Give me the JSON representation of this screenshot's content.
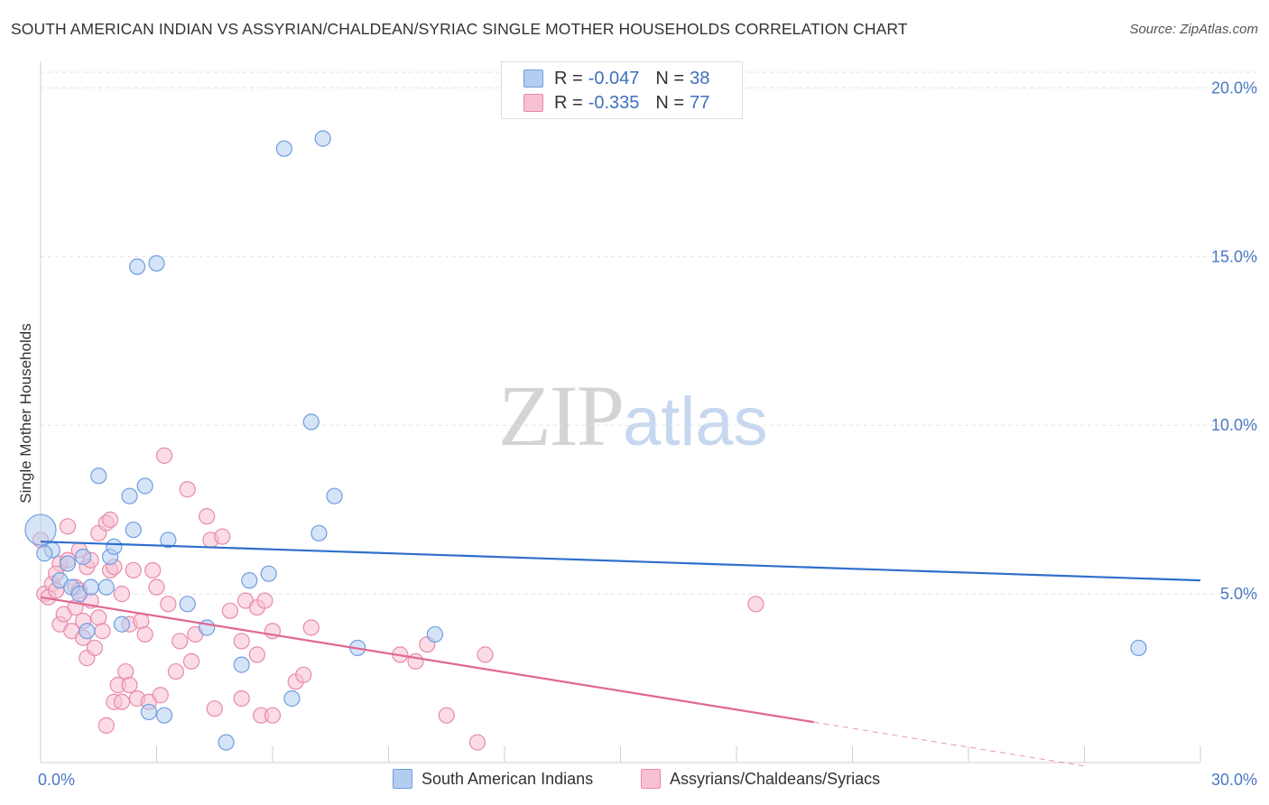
{
  "header": {
    "title": "SOUTH AMERICAN INDIAN VS ASSYRIAN/CHALDEAN/SYRIAC SINGLE MOTHER HOUSEHOLDS CORRELATION CHART",
    "source": "Source: ZipAtlas.com"
  },
  "watermark": {
    "zip": "ZIP",
    "atlas": "atlas"
  },
  "legend": {
    "blue": {
      "r_label": "R =",
      "r_value": "-0.047",
      "n_label": "N =",
      "n_value": "38"
    },
    "pink": {
      "r_label": "R =",
      "r_value": "-0.335",
      "n_label": "N =",
      "n_value": "77"
    }
  },
  "colors": {
    "blue_fill": "#b3cdf0",
    "blue_stroke": "#6f9ddf",
    "blue_line": "#2f6fcc",
    "pink_fill": "#f7c0d2",
    "pink_stroke": "#e88aaa",
    "pink_line": "#e0688f",
    "tick_text": "#4a78c2"
  },
  "chart_data": {
    "type": "scatter",
    "ylabel": "Single Mother Households",
    "xlim": [
      0,
      30
    ],
    "ylim": [
      0,
      20.6
    ],
    "x_tick_labels": [
      "0.0%",
      "30.0%"
    ],
    "y_ticks": [
      5,
      10,
      15,
      20
    ],
    "y_tick_labels": [
      "5.0%",
      "10.0%",
      "15.0%",
      "20.0%"
    ],
    "series": [
      {
        "name": "South American Indians",
        "color": "blue",
        "trend": {
          "x": [
            0,
            30
          ],
          "y": [
            6.55,
            5.4
          ]
        },
        "points": [
          [
            0.0,
            6.9
          ],
          [
            0.3,
            6.3
          ],
          [
            0.5,
            5.4
          ],
          [
            0.7,
            5.9
          ],
          [
            0.8,
            5.2
          ],
          [
            1.0,
            5.0
          ],
          [
            1.1,
            6.1
          ],
          [
            1.2,
            3.9
          ],
          [
            1.3,
            5.2
          ],
          [
            1.5,
            8.5
          ],
          [
            1.7,
            5.2
          ],
          [
            1.8,
            6.1
          ],
          [
            1.9,
            6.4
          ],
          [
            2.1,
            4.1
          ],
          [
            2.3,
            7.9
          ],
          [
            2.4,
            6.9
          ],
          [
            2.5,
            14.7
          ],
          [
            2.7,
            8.2
          ],
          [
            2.8,
            1.5
          ],
          [
            3.0,
            14.8
          ],
          [
            3.2,
            1.4
          ],
          [
            3.3,
            6.6
          ],
          [
            3.8,
            4.7
          ],
          [
            4.3,
            4.0
          ],
          [
            4.8,
            0.6
          ],
          [
            5.2,
            2.9
          ],
          [
            5.4,
            5.4
          ],
          [
            5.9,
            5.6
          ],
          [
            6.3,
            18.2
          ],
          [
            6.5,
            1.9
          ],
          [
            7.0,
            10.1
          ],
          [
            7.2,
            6.8
          ],
          [
            7.3,
            18.5
          ],
          [
            7.6,
            7.9
          ],
          [
            8.2,
            3.4
          ],
          [
            10.2,
            3.8
          ],
          [
            28.4,
            3.4
          ],
          [
            0.1,
            6.2
          ]
        ]
      },
      {
        "name": "Assyrians/Chaldeans/Syriacs",
        "color": "pink",
        "trend": {
          "x": [
            0,
            20
          ],
          "y": [
            4.9,
            1.2
          ]
        },
        "trend_dashed": {
          "x": [
            20,
            27
          ],
          "y": [
            1.2,
            -0.1
          ]
        },
        "points": [
          [
            0.0,
            6.6
          ],
          [
            0.1,
            5.0
          ],
          [
            0.2,
            4.9
          ],
          [
            0.3,
            5.3
          ],
          [
            0.4,
            5.1
          ],
          [
            0.5,
            5.9
          ],
          [
            0.5,
            4.1
          ],
          [
            0.6,
            4.4
          ],
          [
            0.7,
            6.0
          ],
          [
            0.7,
            7.0
          ],
          [
            0.8,
            3.9
          ],
          [
            0.9,
            5.2
          ],
          [
            1.0,
            6.3
          ],
          [
            1.0,
            5.1
          ],
          [
            1.1,
            4.2
          ],
          [
            1.1,
            3.7
          ],
          [
            1.2,
            5.8
          ],
          [
            1.2,
            3.1
          ],
          [
            1.3,
            6.0
          ],
          [
            1.3,
            4.8
          ],
          [
            1.4,
            3.4
          ],
          [
            1.5,
            6.8
          ],
          [
            1.5,
            4.3
          ],
          [
            1.6,
            3.9
          ],
          [
            1.7,
            7.1
          ],
          [
            1.7,
            1.1
          ],
          [
            1.8,
            7.2
          ],
          [
            1.8,
            5.7
          ],
          [
            1.9,
            5.8
          ],
          [
            1.9,
            1.8
          ],
          [
            2.0,
            2.3
          ],
          [
            2.1,
            5.0
          ],
          [
            2.1,
            1.8
          ],
          [
            2.2,
            2.7
          ],
          [
            2.3,
            4.1
          ],
          [
            2.3,
            2.3
          ],
          [
            2.4,
            5.7
          ],
          [
            2.5,
            1.9
          ],
          [
            2.6,
            4.2
          ],
          [
            2.7,
            3.8
          ],
          [
            2.8,
            1.8
          ],
          [
            2.9,
            5.7
          ],
          [
            3.0,
            5.2
          ],
          [
            3.1,
            2.0
          ],
          [
            3.2,
            9.1
          ],
          [
            3.3,
            4.7
          ],
          [
            3.5,
            2.7
          ],
          [
            3.6,
            3.6
          ],
          [
            3.8,
            8.1
          ],
          [
            3.9,
            3.0
          ],
          [
            4.0,
            3.8
          ],
          [
            4.3,
            7.3
          ],
          [
            4.4,
            6.6
          ],
          [
            4.5,
            1.6
          ],
          [
            4.7,
            6.7
          ],
          [
            4.9,
            4.5
          ],
          [
            5.2,
            3.6
          ],
          [
            5.2,
            1.9
          ],
          [
            5.3,
            4.8
          ],
          [
            5.6,
            4.6
          ],
          [
            5.6,
            3.2
          ],
          [
            5.7,
            1.4
          ],
          [
            5.8,
            4.8
          ],
          [
            6.0,
            1.4
          ],
          [
            6.0,
            3.9
          ],
          [
            6.6,
            2.4
          ],
          [
            6.8,
            2.6
          ],
          [
            7.0,
            4.0
          ],
          [
            9.3,
            3.2
          ],
          [
            9.7,
            3.0
          ],
          [
            10.0,
            3.5
          ],
          [
            10.5,
            1.4
          ],
          [
            11.3,
            0.6
          ],
          [
            11.5,
            3.2
          ],
          [
            18.5,
            4.7
          ],
          [
            0.4,
            5.6
          ],
          [
            0.9,
            4.6
          ]
        ]
      }
    ]
  },
  "bottom_legend": {
    "blue": "South American Indians",
    "pink": "Assyrians/Chaldeans/Syriacs"
  }
}
